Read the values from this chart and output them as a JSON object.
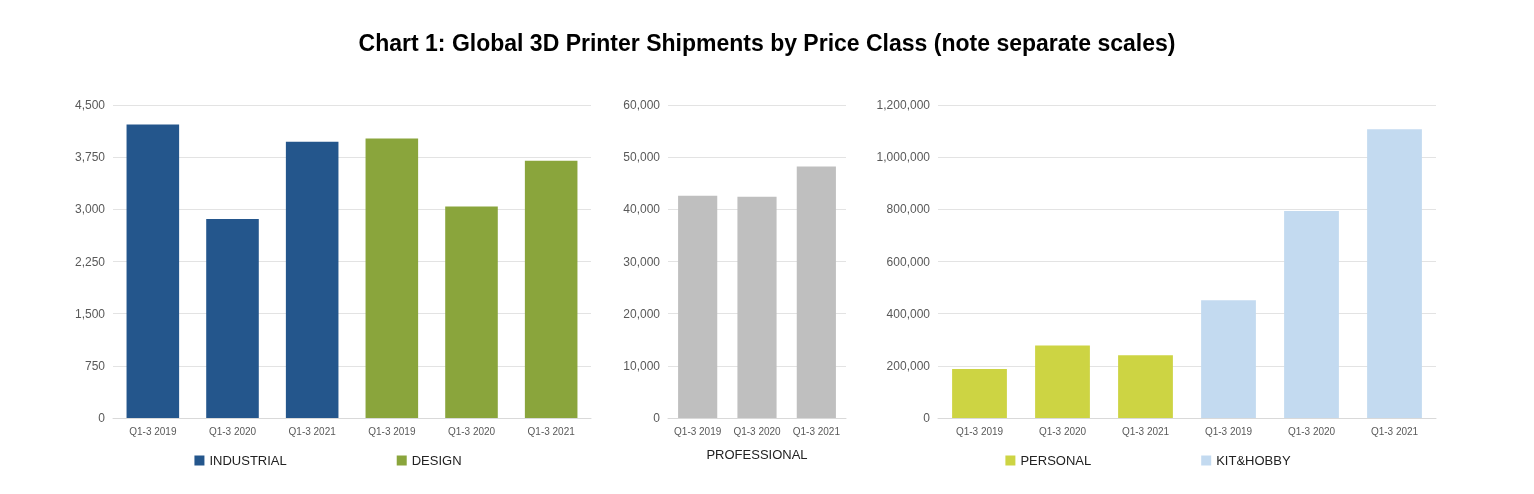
{
  "chart_data": [
    {
      "type": "bar",
      "title": "Chart 1: Global 3D Printer Shipments by Price Class (note separate scales)",
      "categories": [
        "Q1-3 2019",
        "Q1-3 2020",
        "Q1-3 2021",
        "Q1-3 2019",
        "Q1-3 2020",
        "Q1-3 2021"
      ],
      "series": [
        {
          "name": "INDUSTRIAL",
          "color": "#24568c",
          "values": [
            4220,
            2860,
            3970,
            null,
            null,
            null
          ]
        },
        {
          "name": "DESIGN",
          "color": "#8aa53c",
          "values": [
            null,
            null,
            null,
            4020,
            3040,
            3700
          ]
        }
      ],
      "ylim": [
        0,
        4500
      ],
      "yticks": [
        {
          "value": 0,
          "label": "0"
        },
        {
          "value": 750,
          "label": "750"
        },
        {
          "value": 1500,
          "label": "1,500"
        },
        {
          "value": 2250,
          "label": "2,250"
        },
        {
          "value": 3000,
          "label": "3,000"
        },
        {
          "value": 3750,
          "label": "3,750"
        },
        {
          "value": 4500,
          "label": "4,500"
        }
      ],
      "grid": "y",
      "legend": "bottom"
    },
    {
      "type": "bar",
      "xlabel": "PROFESSIONAL",
      "categories": [
        "Q1-3 2019",
        "Q1-3 2020",
        "Q1-3 2021"
      ],
      "series": [
        {
          "color": "#bfbfbf",
          "values": [
            42600,
            42400,
            48200
          ]
        }
      ],
      "ylim": [
        0,
        60000
      ],
      "yticks": [
        {
          "value": 0,
          "label": "0"
        },
        {
          "value": 10000,
          "label": "10,000"
        },
        {
          "value": 20000,
          "label": "20,000"
        },
        {
          "value": 30000,
          "label": "30,000"
        },
        {
          "value": 40000,
          "label": "40,000"
        },
        {
          "value": 50000,
          "label": "50,000"
        },
        {
          "value": 60000,
          "label": "60,000"
        }
      ],
      "grid": "y"
    },
    {
      "type": "bar",
      "categories": [
        "Q1-3 2019",
        "Q1-3 2020",
        "Q1-3 2021",
        "Q1-3 2019",
        "Q1-3 2020",
        "Q1-3 2021"
      ],
      "series": [
        {
          "name": "PERSONAL",
          "color": "#cdd443",
          "values": [
            188000,
            278000,
            241000,
            null,
            null,
            null
          ]
        },
        {
          "name": "KIT&HOBBY",
          "color": "#c3daf0",
          "values": [
            null,
            null,
            null,
            451000,
            794000,
            1107000
          ]
        }
      ],
      "ylim": [
        0,
        1200000
      ],
      "yticks": [
        {
          "value": 0,
          "label": "0"
        },
        {
          "value": 200000,
          "label": "200,000"
        },
        {
          "value": 400000,
          "label": "400,000"
        },
        {
          "value": 600000,
          "label": "600,000"
        },
        {
          "value": 800000,
          "label": "800,000"
        },
        {
          "value": 1000000,
          "label": "1,000,000"
        },
        {
          "value": 1200000,
          "label": "1,200,000"
        }
      ],
      "grid": "y",
      "legend": "bottom"
    }
  ]
}
